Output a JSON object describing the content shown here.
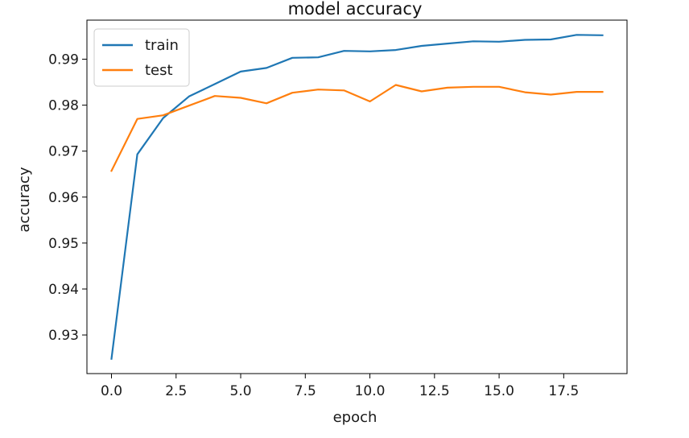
{
  "chart_data": {
    "type": "line",
    "title": "model accuracy",
    "xlabel": "epoch",
    "ylabel": "accuracy",
    "x": [
      0,
      1,
      2,
      3,
      4,
      5,
      6,
      7,
      8,
      9,
      10,
      11,
      12,
      13,
      14,
      15,
      16,
      17,
      18,
      19
    ],
    "xlim": [
      -0.95,
      19.95
    ],
    "ylim": [
      0.9216,
      0.9985
    ],
    "xticks": [
      0.0,
      2.5,
      5.0,
      7.5,
      10.0,
      12.5,
      15.0,
      17.5
    ],
    "xtick_labels": [
      "0.0",
      "2.5",
      "5.0",
      "7.5",
      "10.0",
      "12.5",
      "15.0",
      "17.5"
    ],
    "yticks": [
      0.93,
      0.94,
      0.95,
      0.96,
      0.97,
      0.98,
      0.99
    ],
    "ytick_labels": [
      "0.93",
      "0.94",
      "0.95",
      "0.96",
      "0.97",
      "0.98",
      "0.99"
    ],
    "grid": false,
    "legend_position": "upper-left",
    "series": [
      {
        "name": "train",
        "color": "#1f77b4",
        "values": [
          0.9248,
          0.9693,
          0.9772,
          0.9819,
          0.9846,
          0.9873,
          0.9881,
          0.9903,
          0.9904,
          0.9918,
          0.9917,
          0.992,
          0.9929,
          0.9934,
          0.9939,
          0.9938,
          0.9942,
          0.9943,
          0.9953,
          0.9952
        ]
      },
      {
        "name": "test",
        "color": "#ff7f0e",
        "values": [
          0.9657,
          0.977,
          0.9778,
          0.9799,
          0.982,
          0.9816,
          0.9804,
          0.9827,
          0.9834,
          0.9832,
          0.9808,
          0.9844,
          0.983,
          0.9838,
          0.984,
          0.984,
          0.9828,
          0.9823,
          0.9829,
          0.9829
        ]
      }
    ]
  }
}
